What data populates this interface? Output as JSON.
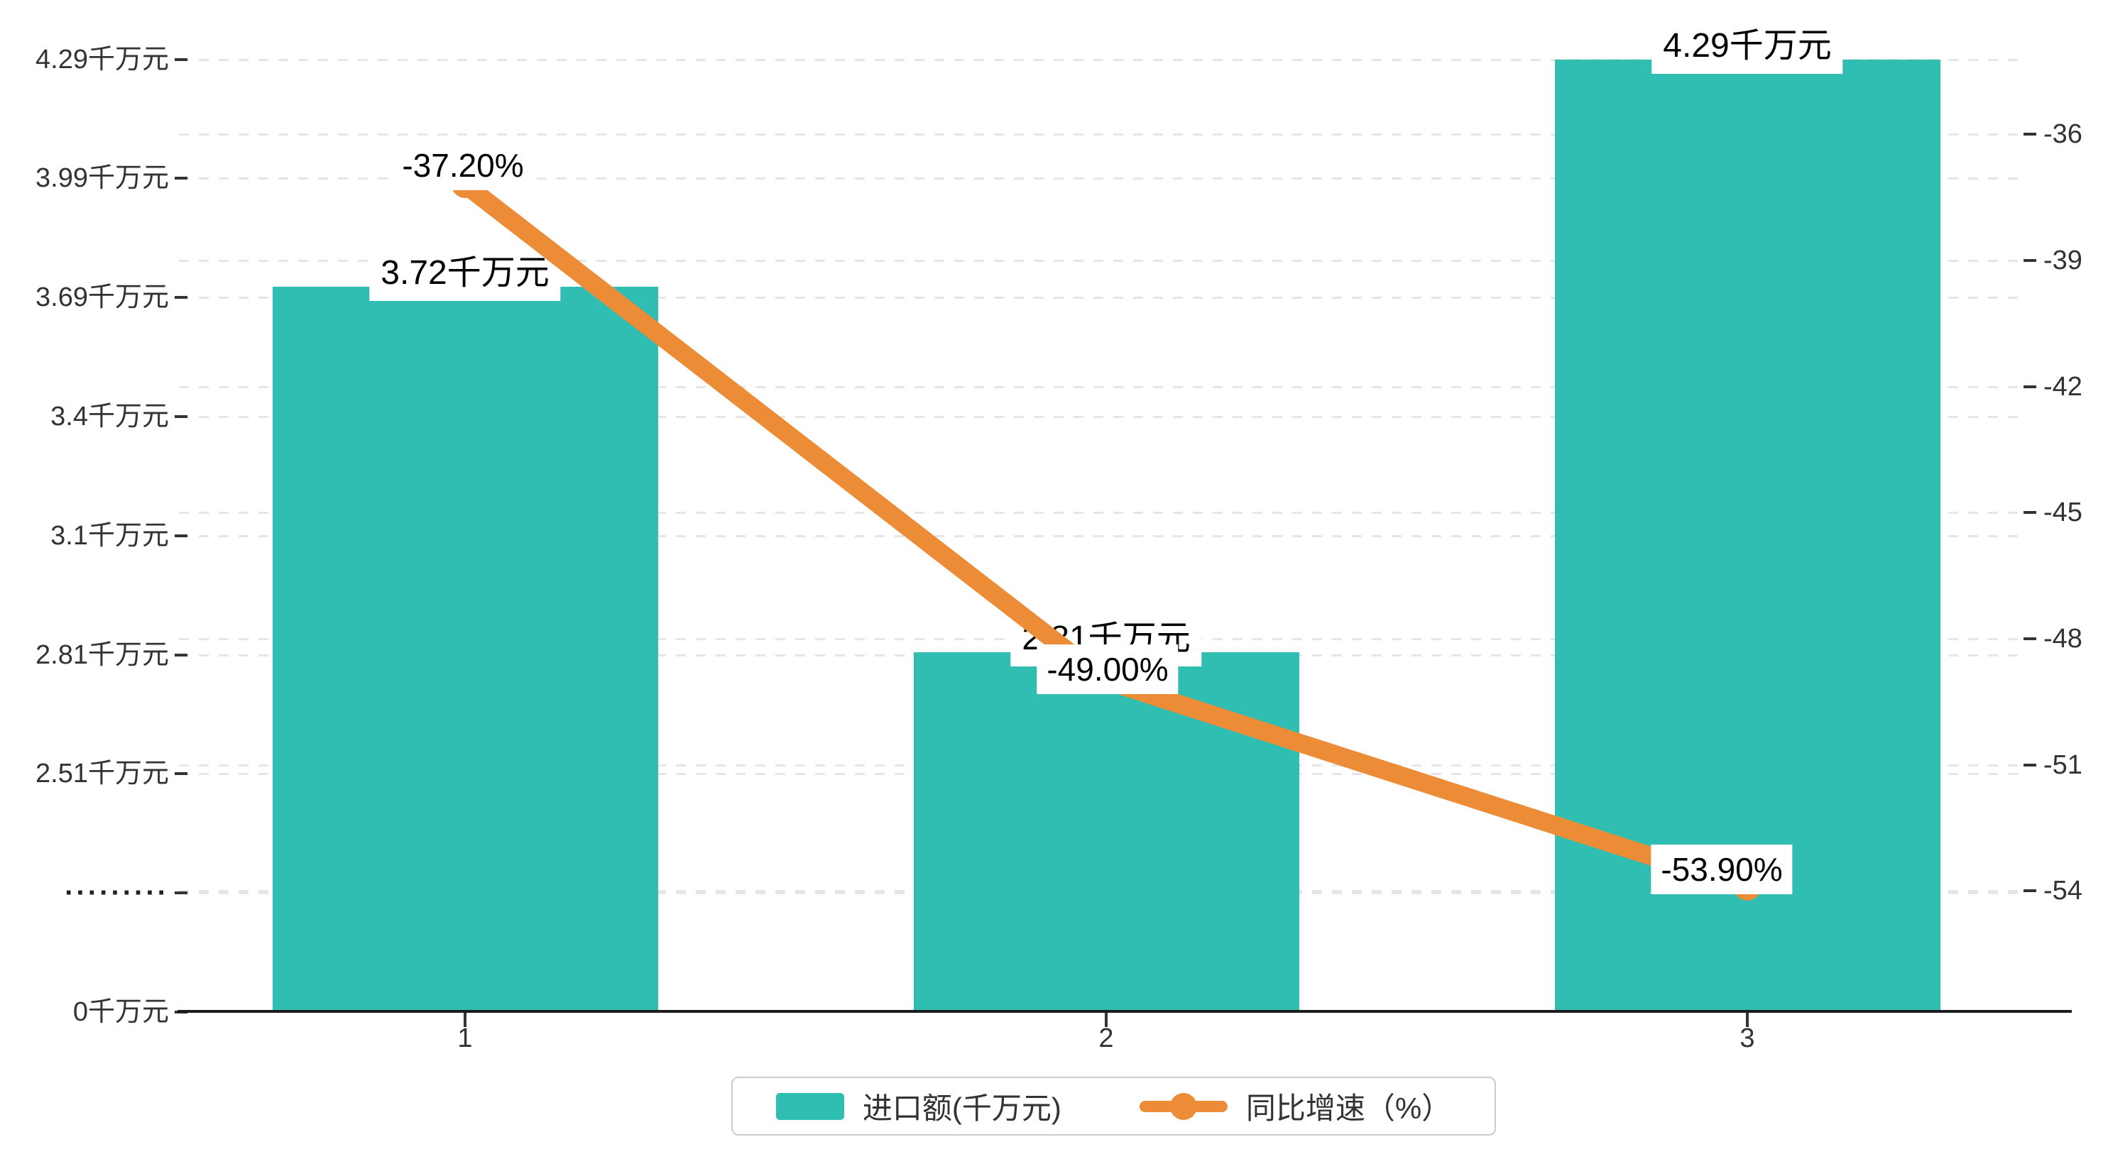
{
  "chart_data": {
    "type": "bar",
    "combo_types": [
      "bar",
      "line"
    ],
    "title": "",
    "categories": [
      "1",
      "2",
      "3"
    ],
    "series": [
      {
        "name": "进口额(千万元)",
        "type": "bar",
        "values": [
          3.72,
          2.81,
          4.29
        ],
        "unit": "千万元",
        "color": "#30BEB2",
        "data_labels": [
          "3.72千万元",
          "2.81千万元",
          "4.29千万元"
        ],
        "axis": "left"
      },
      {
        "name": "同比增速（%）",
        "type": "line",
        "values": [
          -37.2,
          -49.0,
          -53.9
        ],
        "unit": "%",
        "color": "#ED8C36",
        "data_labels": [
          "-37.20%",
          "-49.00%",
          "-53.90%"
        ],
        "axis": "right"
      }
    ],
    "left_axis_tick_labels": [
      "4.29千万元",
      "3.99千万元",
      "3.69千万元",
      "3.4千万元",
      "3.1千万元",
      "2.81千万元",
      "2.51千万元",
      "·········",
      "0千万元"
    ],
    "right_axis_tick_labels": [
      "-36",
      "-39",
      "-42",
      "-45",
      "-48",
      "-51",
      "-54"
    ],
    "right_axis_range": [
      -36,
      -54
    ],
    "legend_position": "bottom",
    "grid": "dashed horizontal gridlines for both y axes"
  },
  "axes": {
    "left": {
      "tick_labels": [
        "4.29千万元",
        "3.99千万元",
        "3.69千万元",
        "3.4千万元",
        "3.1千万元",
        "2.81千万元",
        "2.51千万元",
        "·········",
        "0千万元"
      ]
    },
    "right": {
      "tick_labels": [
        "-36",
        "-39",
        "-42",
        "-45",
        "-48",
        "-51",
        "-54"
      ]
    },
    "x": {
      "tick_labels": [
        "1",
        "2",
        "3"
      ]
    }
  },
  "labels": {
    "bar": [
      "3.72千万元",
      "2.81千万元",
      "4.29千万元"
    ],
    "line": [
      "-37.20%",
      "-49.00%",
      "-53.90%"
    ]
  },
  "legend": {
    "items": [
      {
        "label": "进口额(千万元)",
        "marker": "bar-swatch",
        "color": "#30BEB2"
      },
      {
        "label": "同比增速（%）",
        "marker": "line-with-dot",
        "color": "#ED8C36"
      }
    ]
  },
  "colors": {
    "bar": "#30BEB2",
    "line": "#ED8C36",
    "gridline": "#E6E6E6",
    "axis": "#1C1C1C",
    "axis_text": "#333333",
    "value_text": "#000000",
    "legend_border": "#CCCCCC",
    "background": "#FFFFFF"
  }
}
